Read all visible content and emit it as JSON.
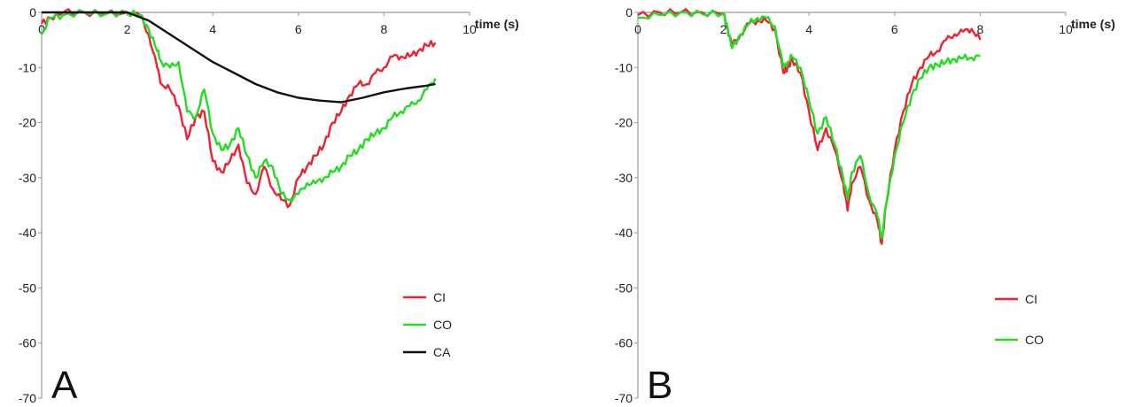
{
  "chart_data": [
    {
      "type": "line",
      "panel_label": "A",
      "xlabel": "time (s)",
      "ylabel": "",
      "xlim": [
        0,
        10
      ],
      "ylim": [
        -70,
        0
      ],
      "xticks": [
        0,
        2,
        4,
        6,
        8,
        10
      ],
      "yticks": [
        0,
        -10,
        -20,
        -30,
        -40,
        -50,
        -60,
        -70
      ],
      "grid": false,
      "legend_position": "bottom-right",
      "series": [
        {
          "name": "CI",
          "color": "#ee2233",
          "x": [
            0,
            0.2,
            0.5,
            1.0,
            1.5,
            2.0,
            2.3,
            2.5,
            2.7,
            2.8,
            3.0,
            3.2,
            3.4,
            3.6,
            3.8,
            4.0,
            4.2,
            4.4,
            4.6,
            4.8,
            5.0,
            5.2,
            5.4,
            5.6,
            5.8,
            6.0,
            6.2,
            6.4,
            6.6,
            6.8,
            7.0,
            7.2,
            7.4,
            7.6,
            7.8,
            8.0,
            8.2,
            8.4,
            8.6,
            8.8,
            9.0,
            9.2
          ],
          "y": [
            -2,
            -1,
            0,
            0,
            -0.3,
            0,
            -0.5,
            -4,
            -10,
            -13,
            -14,
            -17,
            -23,
            -19,
            -18,
            -27,
            -29,
            -27,
            -24,
            -31,
            -33,
            -28,
            -32,
            -34,
            -35,
            -30,
            -28,
            -26,
            -24,
            -20,
            -18,
            -15,
            -13,
            -13,
            -11,
            -10,
            -8,
            -8,
            -8,
            -7,
            -6,
            -5.5
          ]
        },
        {
          "name": "CO",
          "color": "#22dd22",
          "x": [
            0,
            0.2,
            0.5,
            1.0,
            1.5,
            2.0,
            2.3,
            2.5,
            2.7,
            2.8,
            3.0,
            3.2,
            3.4,
            3.6,
            3.8,
            4.0,
            4.2,
            4.4,
            4.6,
            4.8,
            5.0,
            5.2,
            5.4,
            5.6,
            5.8,
            6.0,
            6.2,
            6.4,
            6.6,
            6.8,
            7.0,
            7.2,
            7.4,
            7.6,
            7.8,
            8.0,
            8.2,
            8.4,
            8.6,
            8.8,
            9.0,
            9.2
          ],
          "y": [
            -4,
            -1,
            -0.5,
            0,
            -0.3,
            0,
            -0.5,
            -3,
            -7,
            -9,
            -10,
            -9,
            -18,
            -19,
            -14,
            -22,
            -25,
            -24,
            -21,
            -26,
            -30,
            -27,
            -28,
            -33,
            -34,
            -33,
            -31,
            -31,
            -30,
            -29,
            -28,
            -26,
            -25,
            -23,
            -22,
            -21,
            -19,
            -18,
            -17,
            -16,
            -14,
            -12
          ]
        },
        {
          "name": "CA",
          "color": "#111111",
          "x": [
            0,
            1.0,
            2.0,
            2.5,
            3.0,
            3.5,
            4.0,
            4.5,
            5.0,
            5.5,
            6.0,
            6.5,
            7.0,
            7.5,
            8.0,
            8.5,
            9.0,
            9.2
          ],
          "y": [
            0,
            0,
            0,
            -1.5,
            -4,
            -6.5,
            -9,
            -11,
            -13,
            -14.5,
            -15.5,
            -16,
            -16.3,
            -15.5,
            -14.5,
            -13.8,
            -13.3,
            -13
          ]
        }
      ]
    },
    {
      "type": "line",
      "panel_label": "B",
      "xlabel": "time (s)",
      "ylabel": "",
      "xlim": [
        0,
        10
      ],
      "ylim": [
        -70,
        0
      ],
      "xticks": [
        0,
        2,
        4,
        6,
        8,
        10
      ],
      "yticks": [
        0,
        -10,
        -20,
        -30,
        -40,
        -50,
        -60,
        -70
      ],
      "grid": false,
      "legend_position": "bottom-right",
      "series": [
        {
          "name": "CI",
          "color": "#ee2233",
          "x": [
            0,
            0.5,
            1.0,
            1.5,
            2.0,
            2.1,
            2.2,
            2.4,
            2.6,
            2.8,
            3.0,
            3.2,
            3.4,
            3.5,
            3.6,
            3.8,
            4.0,
            4.2,
            4.4,
            4.6,
            4.8,
            4.9,
            5.0,
            5.2,
            5.4,
            5.6,
            5.7,
            5.8,
            6.0,
            6.2,
            6.4,
            6.6,
            6.8,
            7.0,
            7.2,
            7.4,
            7.6,
            7.8,
            8.0
          ],
          "y": [
            -0.5,
            0,
            0,
            0,
            -0.3,
            -3,
            -6,
            -4,
            -2,
            -1.5,
            -1.5,
            -3,
            -11,
            -10,
            -8.5,
            -11,
            -18,
            -25,
            -21,
            -25,
            -31,
            -36,
            -31,
            -28,
            -34,
            -38,
            -42,
            -35,
            -25,
            -18,
            -13,
            -10,
            -8,
            -7,
            -5,
            -4,
            -3.5,
            -3,
            -5
          ]
        },
        {
          "name": "CO",
          "color": "#22dd22",
          "x": [
            0,
            0.5,
            1.0,
            1.5,
            2.0,
            2.1,
            2.2,
            2.4,
            2.6,
            2.8,
            3.0,
            3.2,
            3.4,
            3.5,
            3.6,
            3.8,
            4.0,
            4.2,
            4.4,
            4.6,
            4.8,
            4.9,
            5.0,
            5.2,
            5.4,
            5.6,
            5.7,
            5.8,
            6.0,
            6.2,
            6.4,
            6.6,
            6.8,
            7.0,
            7.2,
            7.4,
            7.6,
            7.8,
            8.0
          ],
          "y": [
            -1,
            -0.5,
            0,
            -0.3,
            -0.2,
            -3,
            -6.5,
            -4,
            -2,
            -1,
            -1,
            -2.5,
            -10,
            -9,
            -8,
            -10,
            -16,
            -22,
            -19,
            -24,
            -30,
            -34,
            -29,
            -26,
            -33,
            -37,
            -41,
            -35,
            -26,
            -20,
            -15,
            -12,
            -10,
            -9.5,
            -9,
            -8.5,
            -8.3,
            -8.2,
            -8
          ]
        }
      ]
    }
  ]
}
